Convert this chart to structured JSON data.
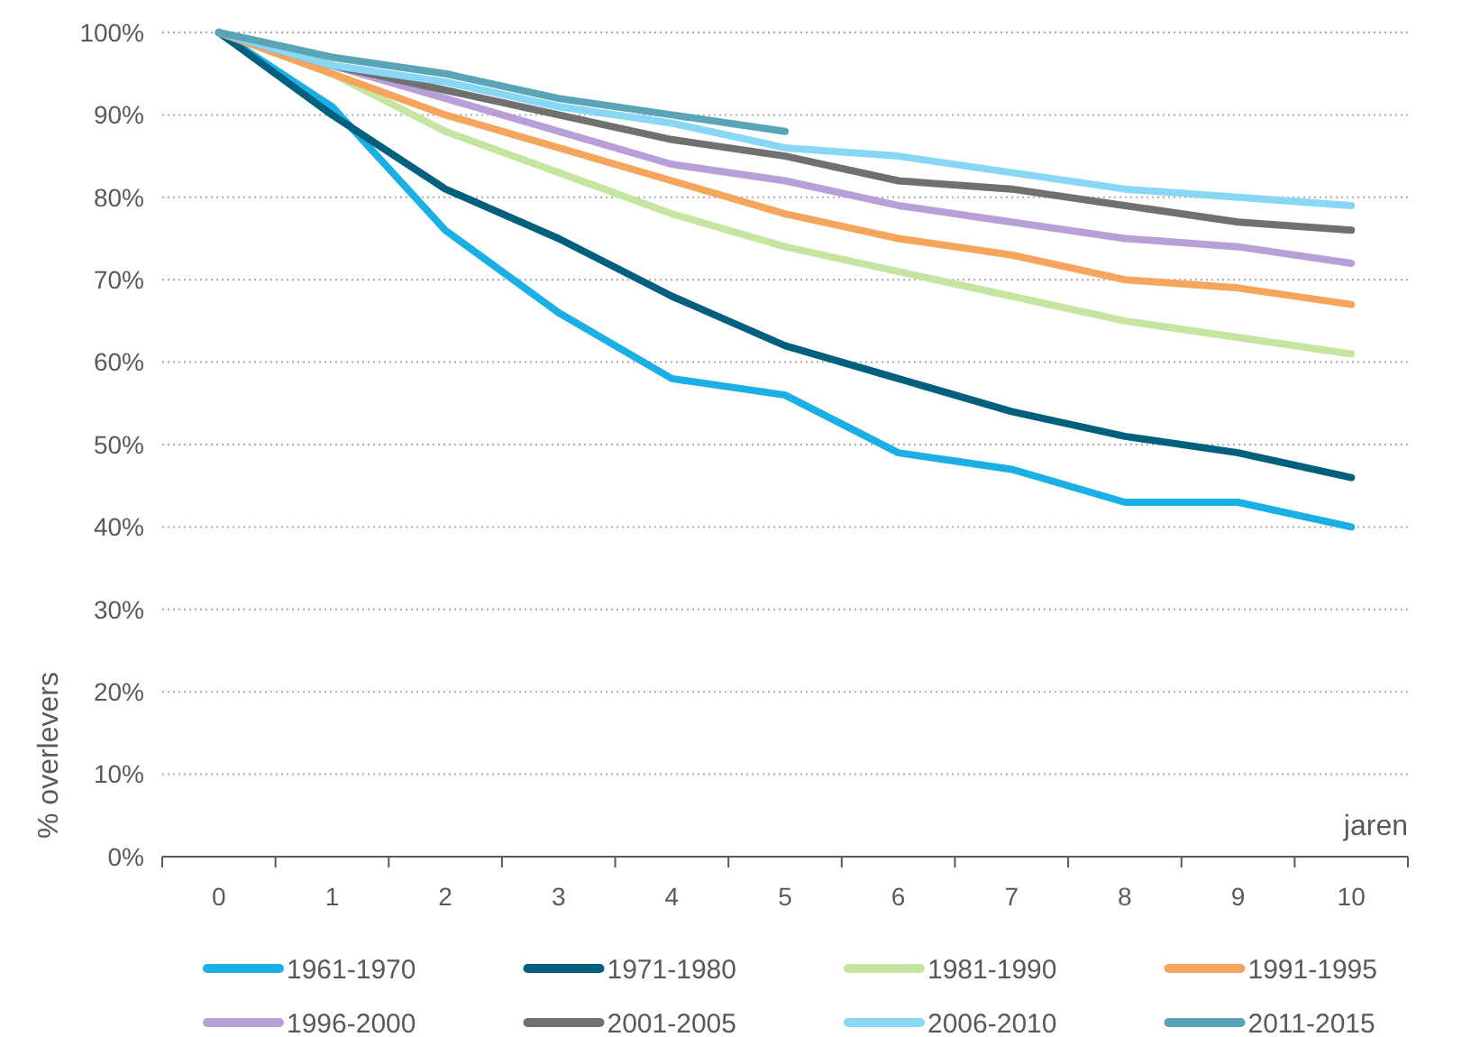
{
  "chart_data": {
    "type": "line",
    "xlabel": "jaren",
    "ylabel": "% overlevers",
    "categories": [
      "0",
      "1",
      "2",
      "3",
      "4",
      "5",
      "6",
      "7",
      "8",
      "9",
      "10"
    ],
    "ylim": [
      0,
      100
    ],
    "yticks": [
      {
        "value": 0,
        "label": "0%"
      },
      {
        "value": 10,
        "label": "10%"
      },
      {
        "value": 20,
        "label": "20%"
      },
      {
        "value": 30,
        "label": "30%"
      },
      {
        "value": 40,
        "label": "40%"
      },
      {
        "value": 50,
        "label": "50%"
      },
      {
        "value": 60,
        "label": "60%"
      },
      {
        "value": 70,
        "label": "70%"
      },
      {
        "value": 80,
        "label": "80%"
      },
      {
        "value": 90,
        "label": "90%"
      },
      {
        "value": 100,
        "label": "100%"
      }
    ],
    "grid": "y",
    "legend": "bottom",
    "marker": "none",
    "line_style": "solid",
    "series": [
      {
        "name": "1961-1970",
        "color": "#1ab0e6",
        "values": [
          100,
          91,
          76,
          66,
          58,
          56,
          49,
          47,
          43,
          43,
          40
        ]
      },
      {
        "name": "1971-1980",
        "color": "#00607e",
        "values": [
          100,
          90,
          81,
          75,
          68,
          62,
          58,
          54,
          51,
          49,
          46
        ]
      },
      {
        "name": "1981-1990",
        "color": "#c5e5a0",
        "values": [
          100,
          95,
          88,
          83,
          78,
          74,
          71,
          68,
          65,
          63,
          61
        ]
      },
      {
        "name": "1991-1995",
        "color": "#f5a55c",
        "values": [
          100,
          95,
          90,
          86,
          82,
          78,
          75,
          73,
          70,
          69,
          67
        ]
      },
      {
        "name": "1996-2000",
        "color": "#b89fd8",
        "values": [
          100,
          96,
          92,
          88,
          84,
          82,
          79,
          77,
          75,
          74,
          72
        ]
      },
      {
        "name": "2001-2005",
        "color": "#707070",
        "values": [
          100,
          96,
          93,
          90,
          87,
          85,
          82,
          81,
          79,
          77,
          76
        ]
      },
      {
        "name": "2006-2010",
        "color": "#88d8f5",
        "values": [
          100,
          96,
          94,
          91,
          89,
          86,
          85,
          83,
          81,
          80,
          79
        ]
      },
      {
        "name": "2011-2015",
        "color": "#5aa4b8",
        "values": [
          100,
          97,
          95,
          92,
          90,
          88,
          null,
          null,
          null,
          null,
          null
        ]
      }
    ]
  }
}
